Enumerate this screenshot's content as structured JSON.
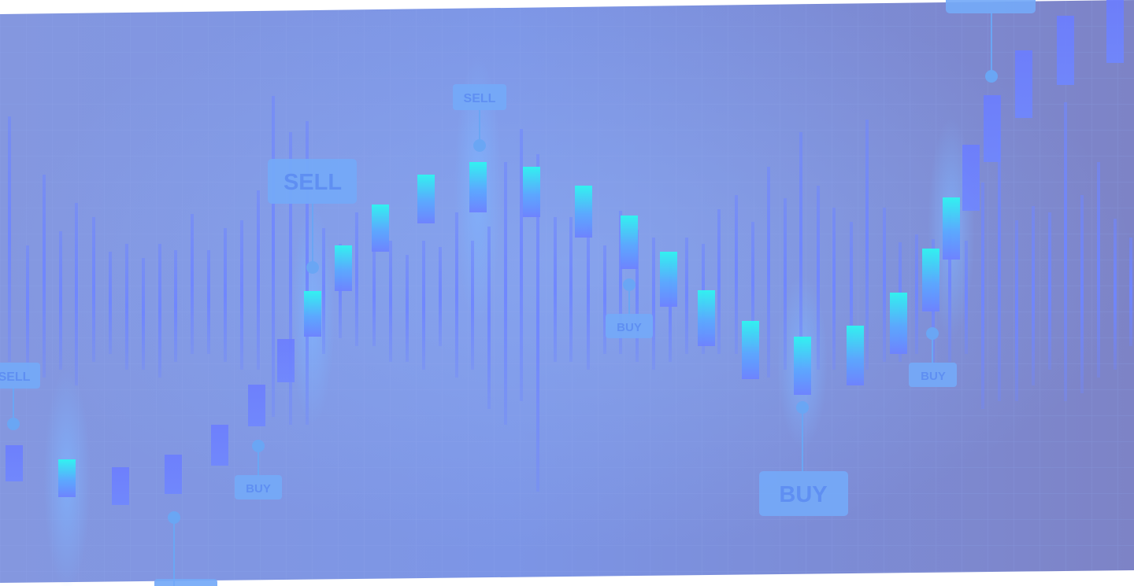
{
  "scene": {
    "background_colors": [
      "#8595e0",
      "#7b8fdf",
      "#7e84c4"
    ],
    "wick_color": "#6f86ff",
    "candle_top_color": "#2ef5f0",
    "candle_body_color": "#6d82ff",
    "label_color": "#74a9f7",
    "label_text_color": "#5f8ff2",
    "connector_color": "#6aa6f4"
  },
  "signals": {
    "sell_large": "SELL",
    "sell_small_left": "SELL",
    "sell_small_top": "SELL",
    "buy_large": "BUY",
    "buy_small_1": "BUY",
    "buy_small_2": "BUY",
    "buy_small_3": "BUY"
  }
}
